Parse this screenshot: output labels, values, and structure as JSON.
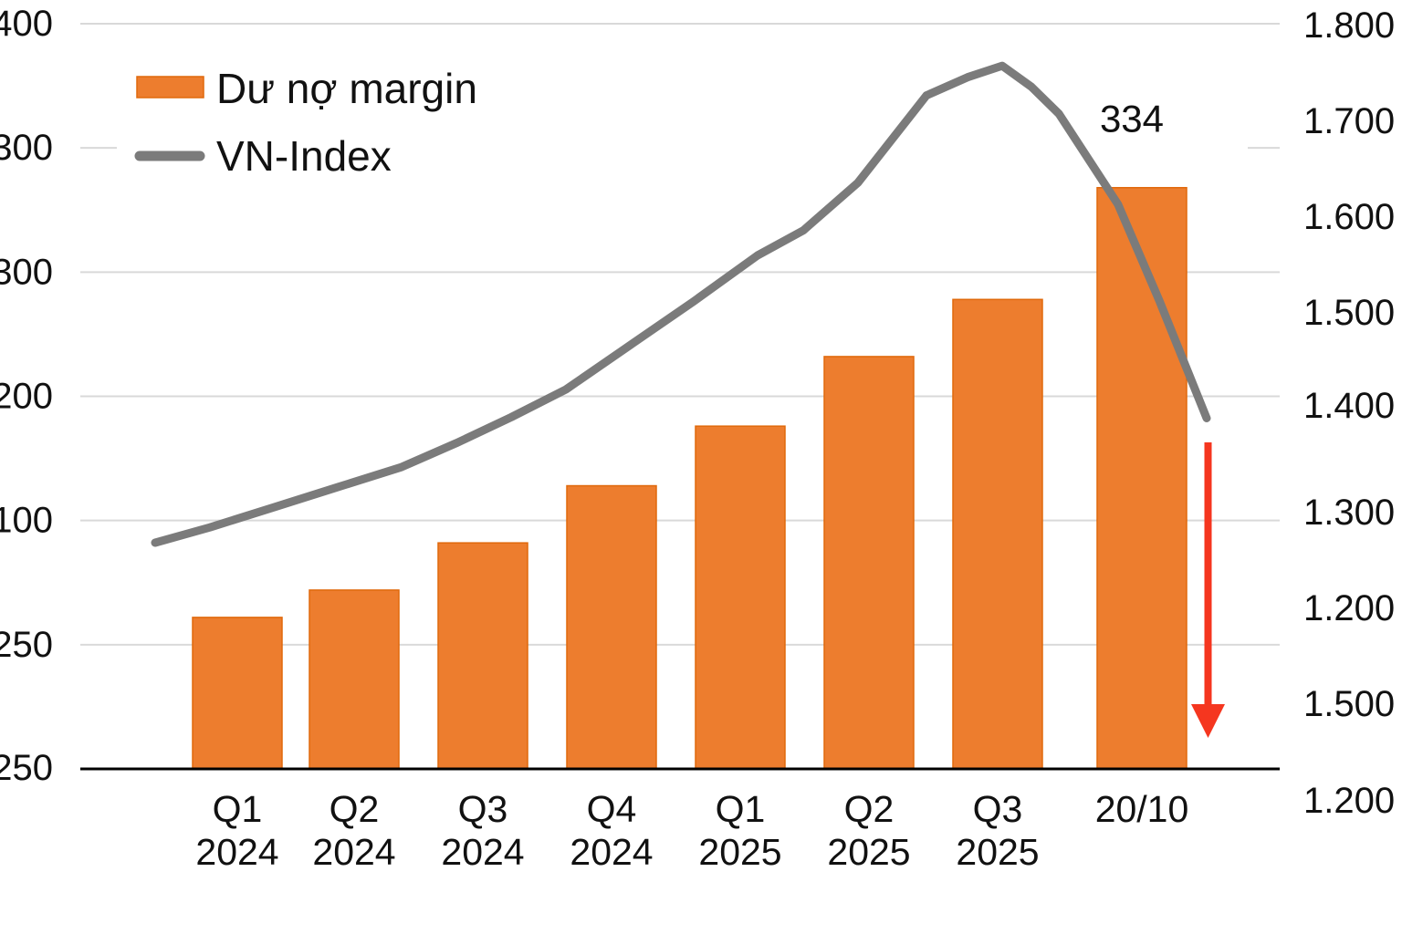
{
  "chart_data": {
    "type": "combo_bar_line",
    "title": "",
    "categories": [
      "Q1 2024",
      "Q2 2024",
      "Q3 2024",
      "Q4 2024",
      "Q1 2025",
      "Q2 2025",
      "Q3 2025",
      "20/10"
    ],
    "categories_lines": [
      [
        "Q1",
        "2024"
      ],
      [
        "Q2",
        "2024"
      ],
      [
        "Q3",
        "2024"
      ],
      [
        "Q4",
        "2024"
      ],
      [
        "Q1",
        "2025"
      ],
      [
        "Q2",
        "2025"
      ],
      [
        "Q3",
        "2025"
      ],
      [
        "20/10"
      ]
    ],
    "series": [
      {
        "name": "Dư nợ margin",
        "type": "bar",
        "axis": "left",
        "values": [
          161,
          172,
          191,
          214,
          238,
          266,
          289,
          334
        ]
      },
      {
        "name": "VN-Index",
        "type": "line",
        "axis": "right",
        "points": [
          [
            170,
            1260
          ],
          [
            230,
            1276
          ],
          [
            300,
            1297
          ],
          [
            370,
            1318
          ],
          [
            440,
            1339
          ],
          [
            500,
            1364
          ],
          [
            560,
            1391
          ],
          [
            620,
            1420
          ],
          [
            693,
            1468
          ],
          [
            760,
            1512
          ],
          [
            830,
            1560
          ],
          [
            880,
            1586
          ],
          [
            940,
            1636
          ],
          [
            1015,
            1727
          ],
          [
            1060,
            1746
          ],
          [
            1098,
            1758
          ],
          [
            1130,
            1736
          ],
          [
            1160,
            1708
          ],
          [
            1225,
            1613
          ],
          [
            1270,
            1513
          ],
          [
            1322,
            1390
          ]
        ]
      }
    ],
    "left_axis": {
      "range": [
        100,
        400
      ],
      "labels_rendered": [
        "400",
        "300",
        "300",
        "200",
        "100",
        "250",
        "250"
      ]
    },
    "right_axis": {
      "range": [
        1200,
        1800
      ],
      "labels_rendered": [
        "1.800",
        "1.700",
        "1.600",
        "1.500",
        "1.400",
        "1.300",
        "1.200",
        "1.500",
        "1.200"
      ]
    },
    "legend": {
      "position": "top-left",
      "items": [
        {
          "label": "Dư nợ margin",
          "marker": "bar"
        },
        {
          "label": "VN-Index",
          "marker": "line"
        }
      ]
    },
    "annotations": [
      {
        "text": "334",
        "target": "last-bar"
      }
    ],
    "grid": true,
    "down_arrow_on_last_point": true
  },
  "colors": {
    "bar": "#ED7D2E",
    "bar_border": "#E0690C",
    "line": "#7B7B7B",
    "grid": "#D9D9D9",
    "axis": "#000000",
    "arrow": "#F5361F",
    "text": "#111111",
    "background": "#FFFFFF"
  }
}
